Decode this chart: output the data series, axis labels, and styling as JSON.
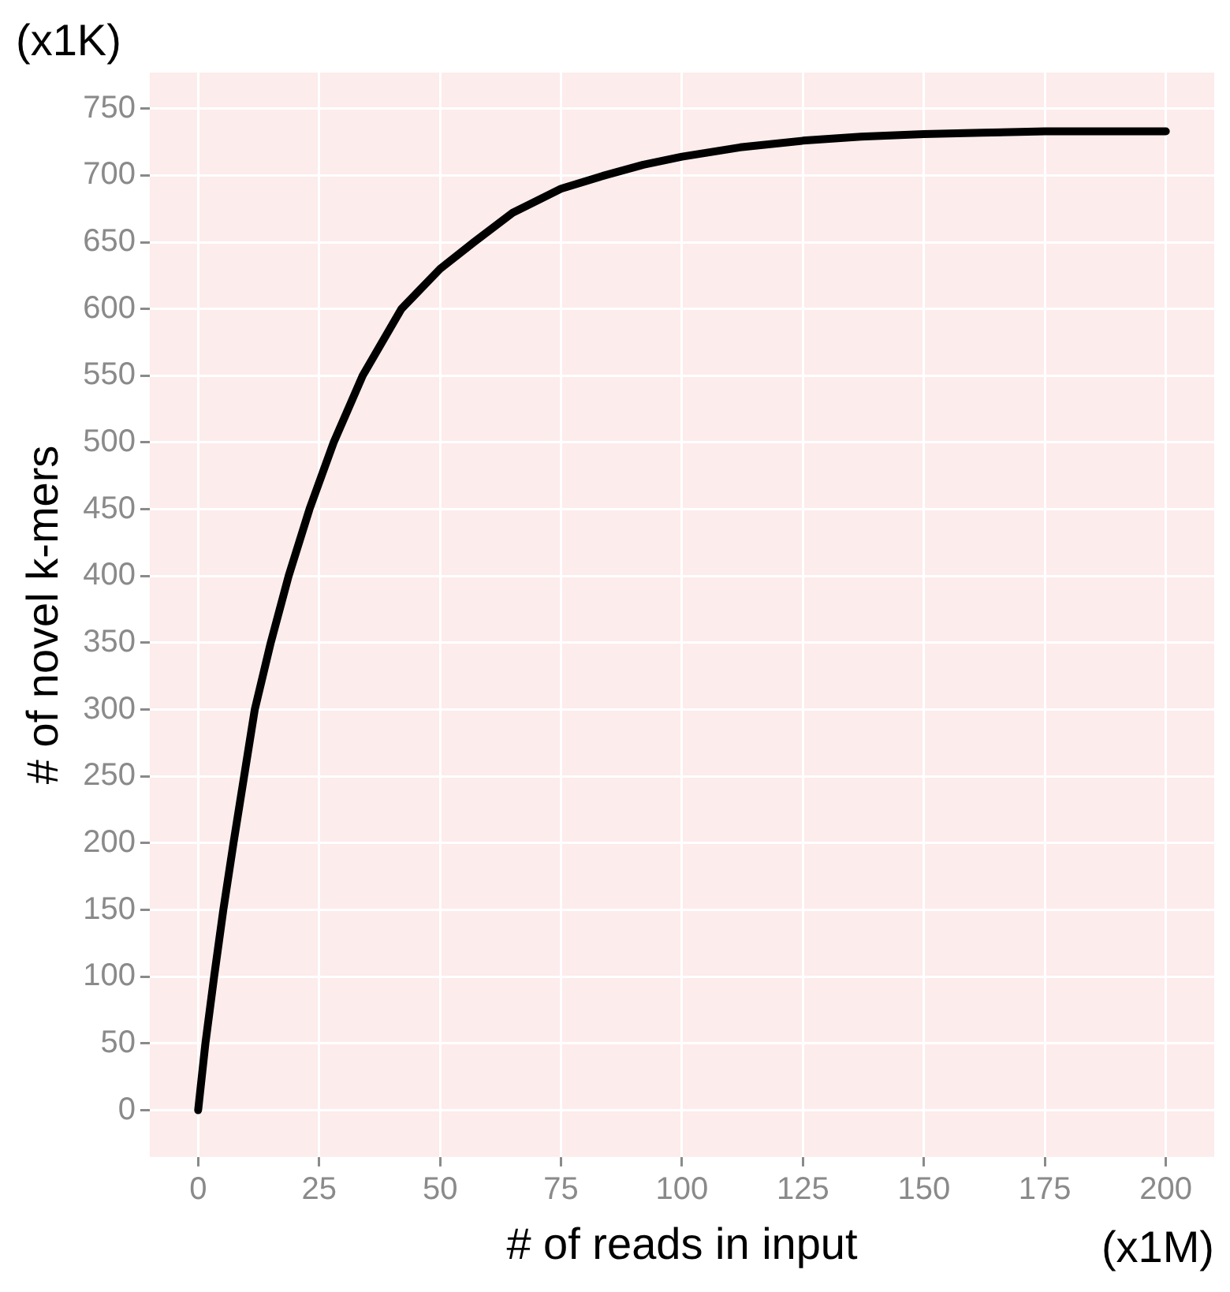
{
  "chart_data": {
    "type": "line",
    "xlabel": "# of reads in input",
    "ylabel": "# of novel k-mers",
    "annotations": [
      "(x1K)",
      "(x1M)"
    ],
    "series": [
      {
        "color": "#000000",
        "x": [
          0,
          1.5,
          3.3,
          5.2,
          7.3,
          9.5,
          11.7,
          15,
          18.7,
          23,
          28,
          34,
          42,
          50,
          57,
          65,
          75,
          84,
          92,
          100,
          112,
          125,
          137,
          150,
          162,
          175,
          187,
          200
        ],
        "values": [
          0,
          50,
          100,
          150,
          200,
          250,
          300,
          350,
          400,
          450,
          500,
          550,
          600,
          630,
          650,
          672,
          690,
          700,
          708,
          714,
          721,
          726,
          729,
          731,
          732,
          733,
          733,
          733
        ]
      }
    ],
    "xlim": [
      -10,
      210
    ],
    "ylim": [
      -35,
      777
    ],
    "xticks": [
      0,
      25,
      50,
      75,
      100,
      125,
      150,
      175,
      200
    ],
    "yticks": [
      0,
      50,
      100,
      150,
      200,
      250,
      300,
      350,
      400,
      450,
      500,
      550,
      600,
      650,
      700,
      750
    ],
    "grid": true,
    "legend": false,
    "marker": "none",
    "line_style": "solid"
  }
}
